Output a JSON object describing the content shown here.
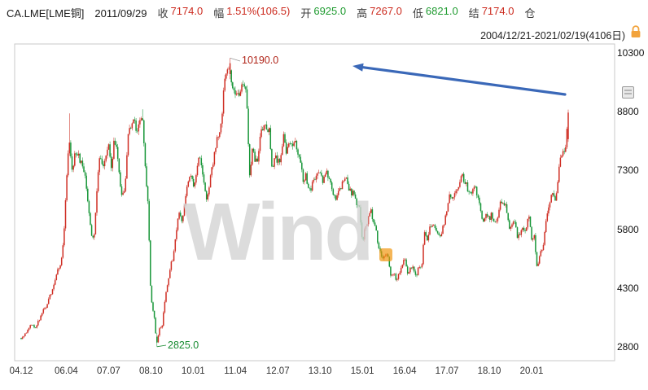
{
  "header": {
    "instrument": "CA.LME[LME铜]",
    "date": "2011/09/29",
    "fields": [
      {
        "label": "收",
        "value": "7174.0",
        "color": "red"
      },
      {
        "label": "幅",
        "value": "1.51%(106.5)",
        "color": "red"
      },
      {
        "label": "开",
        "value": "6925.0",
        "color": "green"
      },
      {
        "label": "高",
        "value": "7267.0",
        "color": "red"
      },
      {
        "label": "低",
        "value": "6821.0",
        "color": "green"
      },
      {
        "label": "结",
        "value": "7174.0",
        "color": "red"
      },
      {
        "label": "仓",
        "value": "",
        "color": "dark"
      }
    ],
    "range": "2004/12/21-2021/02/19(4106日)"
  },
  "watermark": "Wind",
  "annotations": {
    "peak": "10190.0",
    "trough": "2825.0"
  },
  "colors": {
    "up": "#cf2e24",
    "down": "#169537",
    "arrow": "#3a68b8",
    "peak_label": "#b02418",
    "trough_label": "#168a2f",
    "lock": "#f2a33c",
    "watermark_dot": "#f0940a"
  },
  "chart_data": {
    "type": "candlestick",
    "title": "CA.LME LME copper daily candlestick chart",
    "x_labels": [
      "04.12",
      "06.04",
      "07.07",
      "08.10",
      "10.01",
      "11.04",
      "12.07",
      "13.10",
      "15.01",
      "16.04",
      "17.07",
      "18.10",
      "20.01"
    ],
    "y_ticks": [
      2800,
      4300,
      5800,
      7300,
      8800,
      10300
    ],
    "ylim": [
      2620,
      10470
    ],
    "date_start": "2004-12",
    "date_end": "2021-02",
    "bar_count_label": 4106,
    "annotated_high": 10190.0,
    "annotated_low": 2825.0,
    "selected_bar": {
      "date": "2011/09/29",
      "open": 6925.0,
      "high": 7267.0,
      "low": 6821.0,
      "close": 7174.0,
      "settle": 7174.0,
      "change_pct": "1.51%",
      "change_abs": 106.5
    },
    "monthly_close": [
      3050,
      3100,
      3200,
      3330,
      3390,
      3250,
      3450,
      3640,
      3760,
      3850,
      4060,
      4300,
      4550,
      4760,
      4950,
      5480,
      6900,
      8250,
      7300,
      7750,
      7690,
      7580,
      7350,
      7000,
      6300,
      5600,
      5700,
      6900,
      7800,
      7400,
      7600,
      7980,
      7300,
      8100,
      7900,
      6950,
      6650,
      7050,
      8400,
      8400,
      8700,
      8150,
      8700,
      8600,
      7500,
      6400,
      4050,
      3700,
      2900,
      3250,
      3350,
      4000,
      4450,
      4900,
      5100,
      5750,
      6250,
      6050,
      6500,
      6950,
      7350,
      6850,
      7150,
      7750,
      7350,
      6850,
      6500,
      7200,
      7400,
      8000,
      8250,
      8450,
      9600,
      9850,
      9900,
      9400,
      9350,
      9150,
      9400,
      9650,
      9100,
      7150,
      7950,
      7550,
      7600,
      8350,
      8450,
      8400,
      8400,
      7400,
      7700,
      7550,
      7600,
      8200,
      7750,
      8000,
      7900,
      8150,
      7850,
      7550,
      7050,
      7250,
      6750,
      6900,
      7150,
      7300,
      7250,
      7050,
      7350,
      7050,
      7000,
      6650,
      6650,
      6850,
      7000,
      7100,
      6950,
      6700,
      6750,
      6400,
      6350,
      5500,
      5900,
      6050,
      6300,
      6000,
      5750,
      5250,
      5100,
      5150,
      5150,
      4600,
      4700,
      4550,
      4700,
      4850,
      5050,
      4700,
      4850,
      4900,
      4600,
      4850,
      4850,
      5800,
      5550,
      5950,
      5950,
      5850,
      5700,
      5700,
      5950,
      6350,
      6800,
      6500,
      6850,
      6800,
      7250,
      7100,
      6950,
      6700,
      6800,
      6850,
      6650,
      6250,
      6000,
      6250,
      6100,
      6200,
      5950,
      6150,
      6500,
      6450,
      6400,
      5850,
      6000,
      5950,
      5650,
      5750,
      5850,
      5850,
      6150,
      5550,
      5650,
      4800,
      5200,
      5350,
      6000,
      6400,
      6700,
      6600,
      6700,
      7550,
      7750,
      7850,
      8800
    ]
  }
}
